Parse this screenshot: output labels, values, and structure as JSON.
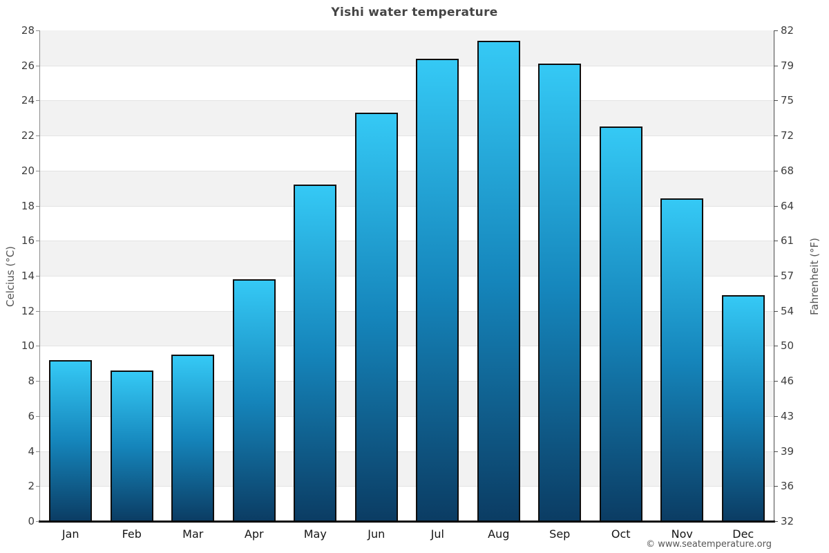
{
  "chart_data": {
    "type": "bar",
    "title": "Yishi water temperature",
    "categories": [
      "Jan",
      "Feb",
      "Mar",
      "Apr",
      "May",
      "Jun",
      "Jul",
      "Aug",
      "Sep",
      "Oct",
      "Nov",
      "Dec"
    ],
    "values": [
      9.2,
      8.6,
      9.5,
      13.8,
      19.2,
      23.3,
      26.4,
      27.4,
      26.1,
      22.5,
      18.4,
      12.9
    ],
    "ylabel_left": "Celcius (°C)",
    "ylabel_right": "Fahrenheit (°F)",
    "ylim": [
      0,
      28
    ],
    "yticks_celsius": [
      0,
      2,
      4,
      6,
      8,
      10,
      12,
      14,
      16,
      18,
      20,
      22,
      24,
      26,
      28
    ],
    "yticks_fahrenheit": [
      32,
      36,
      39,
      43,
      46,
      50,
      54,
      57,
      61,
      64,
      68,
      72,
      75,
      79,
      82
    ],
    "xlabel": "",
    "legend_position": "none",
    "grid": "alternating-horizontal-bands",
    "colors": {
      "bar_gradient_top": "#35c9f5",
      "bar_gradient_mid": "#1585bb",
      "bar_gradient_bottom": "#0b3c63",
      "bar_border": "#0d0d0d",
      "band_shade": "#f2f2f2",
      "band_plain": "#ffffff",
      "title_text": "#454545",
      "tick_text": "#3d3d3d",
      "baseline": "#0a0a0a"
    }
  },
  "footer": {
    "text": "© www.seatemperature.org"
  }
}
